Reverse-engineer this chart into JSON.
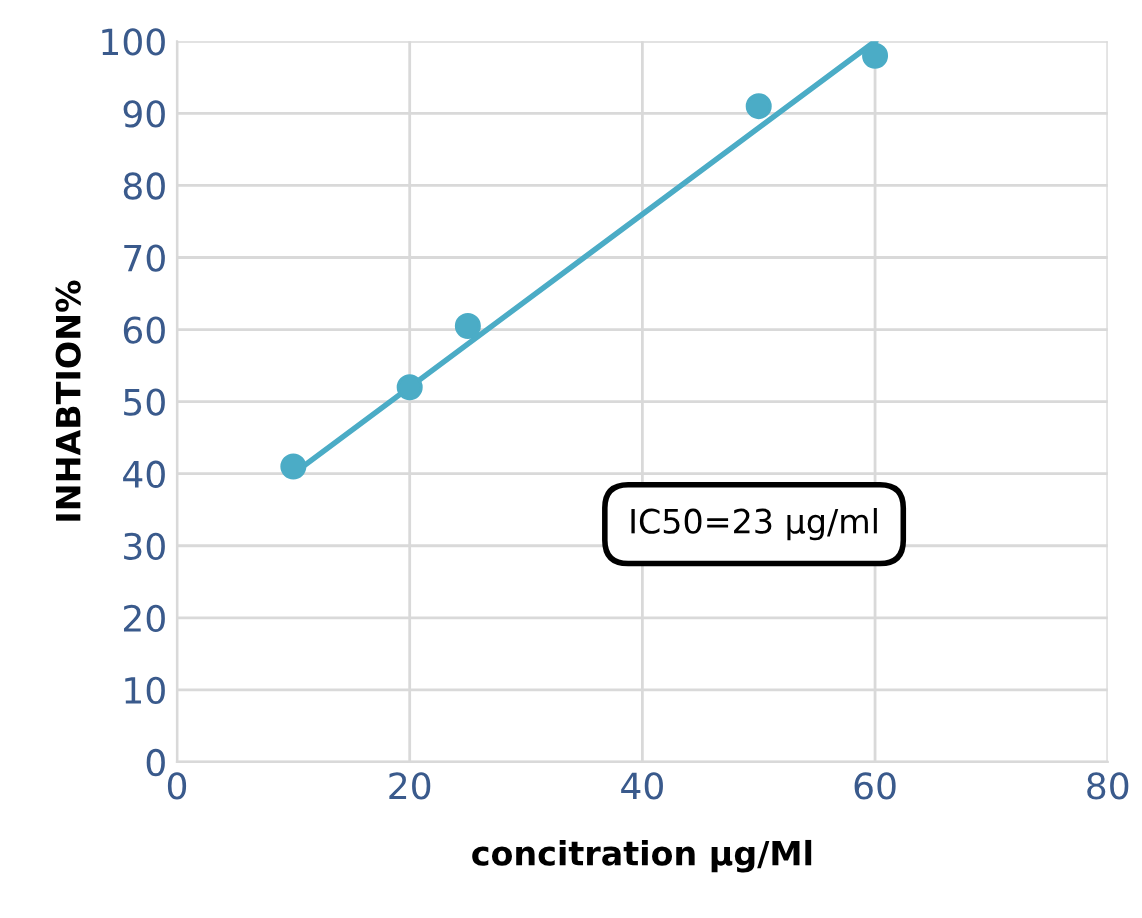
{
  "chart_data": {
    "type": "scatter",
    "xlabel": "concitration µg/Ml",
    "ylabel": "INHABTION%",
    "x": [
      10,
      20,
      25,
      50,
      60
    ],
    "series": [
      {
        "color": "#4bacc6",
        "values": [
          41,
          52,
          60.5,
          91,
          98
        ],
        "marker": "circle"
      },
      {
        "type": "line",
        "color": "#4bacc6",
        "x": [
          10,
          60
        ],
        "values": [
          40,
          100
        ],
        "marker": "none"
      }
    ],
    "xlim": [
      0,
      80
    ],
    "xticks": [
      0,
      20,
      40,
      60,
      80
    ],
    "ylim": [
      0,
      100
    ],
    "yticks": [
      0,
      10,
      20,
      30,
      40,
      50,
      60,
      70,
      80,
      90,
      100
    ],
    "grid": true,
    "annotations": [
      "IC50=23 µg/ml"
    ]
  }
}
